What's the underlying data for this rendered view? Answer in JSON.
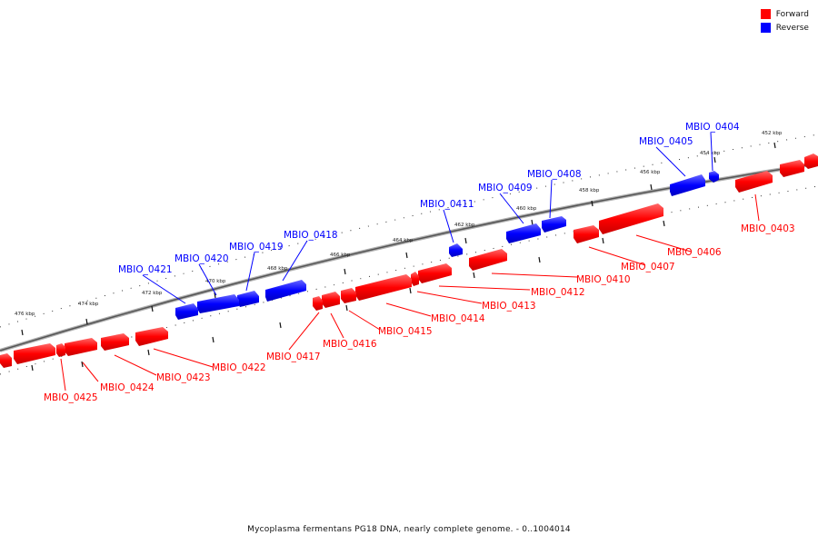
{
  "legend": {
    "forward_label": "Forward",
    "reverse_label": "Reverse",
    "forward_color": "#ff0000",
    "reverse_color": "#0000ff"
  },
  "caption": "Mycoplasma fermentans PG18 DNA, nearly complete genome. - 0..1004014",
  "axis_ticks": [
    "452 kbp",
    "454 kbp",
    "456 kbp",
    "458 kbp",
    "460 kbp",
    "462 kbp",
    "464 kbp",
    "466 kbp",
    "468 kbp",
    "470 kbp",
    "472 kbp",
    "474 kbp",
    "476 kbp"
  ],
  "genes_reverse": [
    "MBIO_0404",
    "MBIO_0405",
    "MBIO_0408",
    "MBIO_0409",
    "MBIO_0411",
    "MBIO_0418",
    "MBIO_0419",
    "MBIO_0420",
    "MBIO_0421"
  ],
  "genes_forward": [
    "MBIO_0403",
    "MBIO_0406",
    "MBIO_0407",
    "MBIO_0410",
    "MBIO_0412",
    "MBIO_0413",
    "MBIO_0414",
    "MBIO_0415",
    "MBIO_0416",
    "MBIO_0417",
    "MBIO_0422",
    "MBIO_0423",
    "MBIO_0424",
    "MBIO_0425"
  ]
}
